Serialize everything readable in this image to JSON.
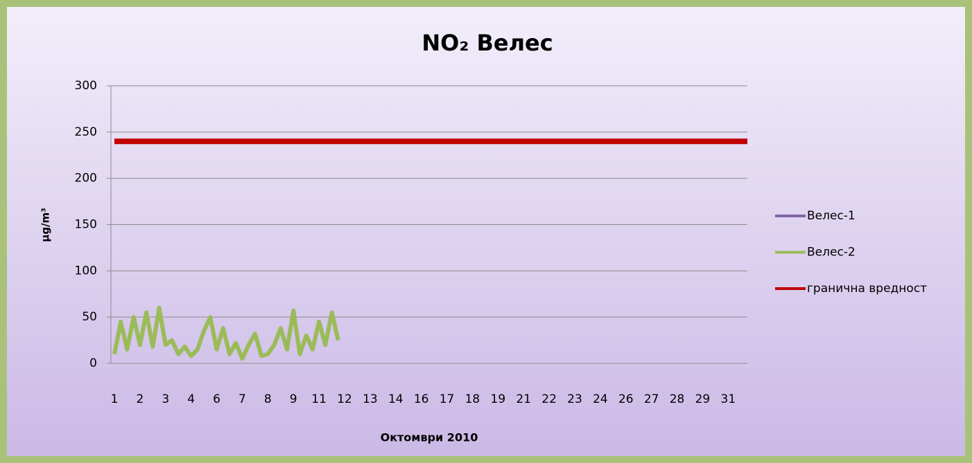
{
  "chart_data": {
    "type": "line",
    "title": "NO₂ Велес",
    "y_label": "µg/m³",
    "x_label": "Октомври 2010",
    "categories": [
      "1",
      null,
      null,
      null,
      "2",
      null,
      null,
      null,
      "3",
      null,
      null,
      null,
      "4",
      null,
      null,
      null,
      "6",
      null,
      null,
      null,
      "7",
      null,
      null,
      null,
      "8",
      null,
      null,
      null,
      "9",
      null,
      null,
      null,
      "11",
      null,
      null,
      null,
      "12",
      null,
      null,
      null,
      "13",
      null,
      null,
      null,
      "14",
      null,
      null,
      null,
      "16",
      null,
      null,
      null,
      "17",
      null,
      null,
      null,
      "18",
      null,
      null,
      null,
      "19",
      null,
      null,
      null,
      "21",
      null,
      null,
      null,
      "22",
      null,
      null,
      null,
      "23",
      null,
      null,
      null,
      "24",
      null,
      null,
      null,
      "26",
      null,
      null,
      null,
      "27",
      null,
      null,
      null,
      "28",
      null,
      null,
      null,
      "29",
      null,
      null,
      null,
      "31",
      null,
      null,
      null
    ],
    "series": [
      {
        "name": "Велес-1",
        "color": "#8064a2",
        "width": 4,
        "values": [
          null,
          null,
          null,
          null,
          null,
          null,
          null,
          null,
          null,
          null,
          null,
          null,
          null,
          null,
          null,
          null,
          null,
          null,
          null,
          null,
          null,
          null,
          null,
          null,
          null,
          null,
          null,
          null,
          null,
          null,
          null,
          null,
          null,
          null,
          null,
          null,
          null,
          null,
          null,
          null,
          null,
          null,
          null,
          null,
          null,
          null,
          null,
          null,
          null,
          null,
          null,
          null,
          null,
          null,
          null,
          null,
          null,
          null,
          null,
          null,
          null,
          null,
          null,
          null,
          null,
          null,
          null,
          null,
          null,
          null,
          null,
          null,
          null,
          null,
          null,
          null,
          null,
          null,
          null,
          null,
          null,
          null,
          null,
          null,
          null,
          null,
          null,
          null,
          null,
          null,
          null,
          null,
          null,
          null,
          null,
          null,
          null,
          null,
          null,
          null
        ]
      },
      {
        "name": "Велес-2",
        "color": "#9bbb59",
        "width": 6,
        "values": [
          10,
          45,
          15,
          50,
          20,
          55,
          18,
          60,
          20,
          25,
          10,
          18,
          8,
          15,
          35,
          50,
          15,
          38,
          10,
          22,
          5,
          20,
          32,
          8,
          10,
          20,
          38,
          15,
          57,
          10,
          30,
          15,
          45,
          20,
          55,
          25,
          null,
          null,
          null,
          null,
          null,
          null,
          null,
          null,
          null,
          null,
          null,
          null,
          null,
          null,
          null,
          null,
          null,
          null,
          null,
          null,
          null,
          null,
          null,
          null,
          null,
          null,
          null,
          null,
          null,
          null,
          null,
          null,
          null,
          null,
          null,
          null,
          null,
          null,
          null,
          null,
          null,
          null,
          null,
          null,
          null,
          null,
          null,
          null,
          null,
          null,
          null,
          null,
          null,
          null,
          null,
          null,
          null,
          null,
          null,
          null,
          null,
          null,
          null,
          null
        ]
      },
      {
        "name": "гранична вредност",
        "color": "#c00000",
        "width": 8,
        "values": [
          240,
          240,
          240,
          240,
          240,
          240,
          240,
          240,
          240,
          240,
          240,
          240,
          240,
          240,
          240,
          240,
          240,
          240,
          240,
          240,
          240,
          240,
          240,
          240,
          240,
          240,
          240,
          240,
          240,
          240,
          240,
          240,
          240,
          240,
          240,
          240,
          240,
          240,
          240,
          240,
          240,
          240,
          240,
          240,
          240,
          240,
          240,
          240,
          240,
          240,
          240,
          240,
          240,
          240,
          240,
          240,
          240,
          240,
          240,
          240,
          240,
          240,
          240,
          240,
          240,
          240,
          240,
          240,
          240,
          240,
          240,
          240,
          240,
          240,
          240,
          240,
          240,
          240,
          240,
          240,
          240,
          240,
          240,
          240,
          240,
          240,
          240,
          240,
          240,
          240,
          240,
          240,
          240,
          240,
          240,
          240,
          240,
          240,
          240,
          240
        ]
      }
    ],
    "ylim": [
      0,
      300
    ],
    "yticks": [
      0,
      50,
      100,
      150,
      200,
      250,
      300
    ],
    "grid": true
  }
}
